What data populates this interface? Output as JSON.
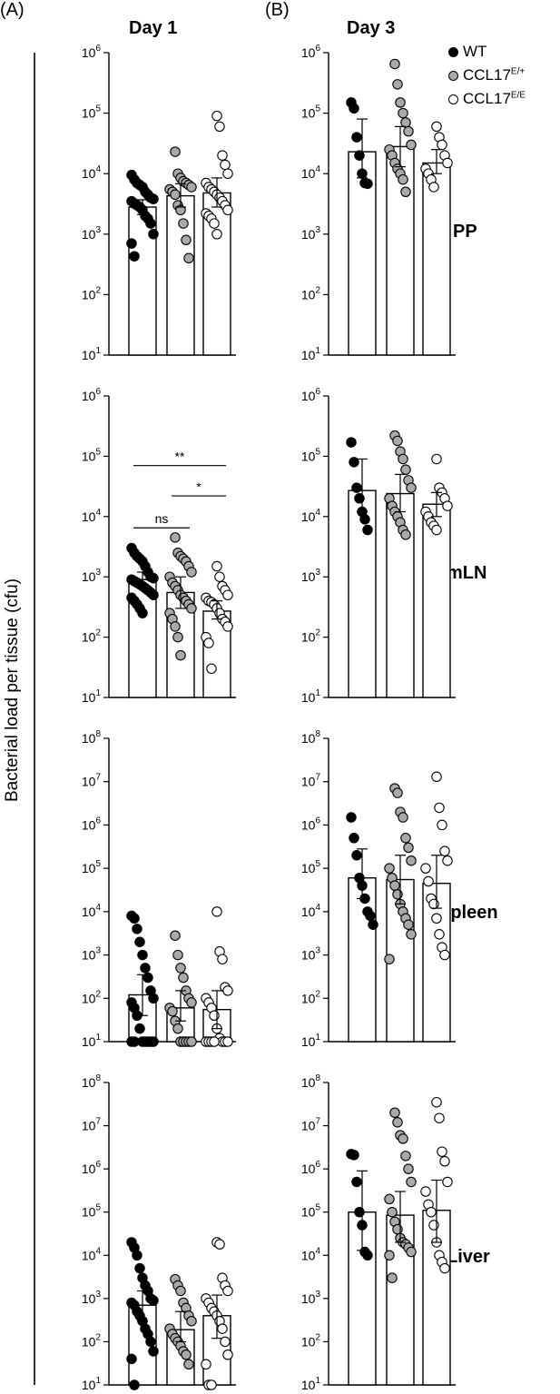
{
  "labels": {
    "panel_a": "(A)",
    "panel_b": "(B)",
    "day1": "Day 1",
    "day3": "Day 3",
    "y_axis_title": "Bacterial load per tissue (cfu)",
    "rows": [
      "PP",
      "mLN",
      "Spleen",
      "Liver"
    ]
  },
  "legend": [
    {
      "base": "WT",
      "sup": "",
      "color": "#000000"
    },
    {
      "base": "CCL17",
      "sup": "E/+",
      "color": "#a9a9a9"
    },
    {
      "base": "CCL17",
      "sup": "E/E",
      "color": "#ffffff"
    }
  ],
  "chart_data": [
    {
      "type": "bar",
      "panel": "A",
      "row": "PP",
      "column": "Day 1",
      "yscale": "log",
      "ylim": [
        10,
        1000000
      ],
      "yticks": [
        "10^1",
        "10^2",
        "10^3",
        "10^4",
        "10^5",
        "10^6"
      ],
      "series": [
        {
          "name": "WT",
          "mean": 2800,
          "err": [
            2100,
            3700
          ],
          "points": [
            9500,
            8000,
            7000,
            6500,
            6000,
            5000,
            4500,
            4000,
            3800,
            3500,
            3200,
            3000,
            2800,
            2500,
            2000,
            1800,
            1500,
            1000,
            700,
            430
          ]
        },
        {
          "name": "CCL17E/+",
          "mean": 4300,
          "err": [
            2800,
            6800
          ],
          "points": [
            23000,
            10000,
            8500,
            7500,
            7000,
            6500,
            6000,
            5500,
            5000,
            4500,
            3000,
            2500,
            1500,
            800,
            400
          ]
        },
        {
          "name": "CCL17E/E",
          "mean": 4800,
          "err": [
            2800,
            8500
          ],
          "points": [
            90000,
            60000,
            20000,
            14000,
            10000,
            7000,
            6000,
            5500,
            5000,
            4500,
            4000,
            3500,
            3000,
            2500,
            2200,
            2000,
            1800,
            1500,
            1000
          ]
        }
      ]
    },
    {
      "type": "bar",
      "panel": "B",
      "row": "PP",
      "column": "Day 3",
      "yscale": "log",
      "ylim": [
        10,
        1000000
      ],
      "yticks": [
        "10^1",
        "10^2",
        "10^3",
        "10^4",
        "10^5",
        "10^6"
      ],
      "series": [
        {
          "name": "WT",
          "mean": 23000,
          "err": [
            8500,
            80000
          ],
          "points": [
            150000,
            120000,
            40000,
            20000,
            10000,
            7000,
            6800
          ]
        },
        {
          "name": "CCL17E/+",
          "mean": 28000,
          "err": [
            13000,
            60000
          ],
          "points": [
            650000,
            300000,
            150000,
            100000,
            70000,
            50000,
            30000,
            25000,
            20000,
            15000,
            12000,
            10000,
            8000,
            5000
          ]
        },
        {
          "name": "CCL17E/E",
          "mean": 15000,
          "err": [
            10000,
            25000
          ],
          "points": [
            60000,
            40000,
            30000,
            20000,
            15000,
            12000,
            10000,
            8000,
            6000
          ]
        }
      ]
    },
    {
      "type": "bar",
      "panel": "A",
      "row": "mLN",
      "column": "Day 1",
      "yscale": "log",
      "ylim": [
        10,
        1000000
      ],
      "yticks": [
        "10^1",
        "10^2",
        "10^3",
        "10^4",
        "10^5",
        "10^6"
      ],
      "annotations": [
        {
          "text": "**",
          "from": 0,
          "to": 2,
          "y": 70000
        },
        {
          "text": "ns",
          "from": 0,
          "to": 1,
          "y": 6500
        },
        {
          "text": "*",
          "from": 1,
          "to": 2,
          "y": 22000
        }
      ],
      "series": [
        {
          "name": "WT",
          "mean": 900,
          "err": [
            700,
            1200
          ],
          "points": [
            3000,
            2500,
            2200,
            2000,
            1800,
            1500,
            1200,
            1000,
            950,
            900,
            850,
            800,
            750,
            700,
            650,
            600,
            550,
            500,
            450,
            400,
            350,
            300,
            250
          ]
        },
        {
          "name": "CCL17E/+",
          "mean": 550,
          "err": [
            300,
            1000
          ],
          "points": [
            4500,
            2500,
            2200,
            2000,
            1800,
            1500,
            1200,
            1000,
            800,
            700,
            600,
            500,
            450,
            400,
            350,
            300,
            250,
            200,
            150,
            100,
            50
          ]
        },
        {
          "name": "CCL17E/E",
          "mean": 270,
          "err": [
            200,
            400
          ],
          "points": [
            1500,
            1000,
            700,
            600,
            500,
            450,
            400,
            380,
            350,
            300,
            250,
            200,
            180,
            150,
            100,
            80,
            30
          ]
        }
      ]
    },
    {
      "type": "bar",
      "panel": "B",
      "row": "mLN",
      "column": "Day 3",
      "yscale": "log",
      "ylim": [
        10,
        1000000
      ],
      "yticks": [
        "10^1",
        "10^2",
        "10^3",
        "10^4",
        "10^5",
        "10^6"
      ],
      "series": [
        {
          "name": "WT",
          "mean": 27000,
          "err": [
            12000,
            90000
          ],
          "points": [
            170000,
            80000,
            30000,
            20000,
            12000,
            9000,
            6000
          ]
        },
        {
          "name": "CCL17E/+",
          "mean": 24000,
          "err": [
            12000,
            50000
          ],
          "points": [
            220000,
            180000,
            120000,
            90000,
            60000,
            40000,
            30000,
            20000,
            15000,
            12000,
            10000,
            8000,
            6000,
            5000
          ]
        },
        {
          "name": "CCL17E/E",
          "mean": 16000,
          "err": [
            10000,
            25000
          ],
          "points": [
            90000,
            30000,
            25000,
            20000,
            15000,
            12000,
            10000,
            8000,
            7000,
            6000
          ]
        }
      ]
    },
    {
      "type": "bar",
      "panel": "A",
      "row": "Spleen",
      "column": "Day 1",
      "yscale": "log",
      "ylim": [
        10,
        100000000
      ],
      "yticks": [
        "10^1",
        "10^2",
        "10^3",
        "10^4",
        "10^5",
        "10^6",
        "10^7",
        "10^8"
      ],
      "series": [
        {
          "name": "WT",
          "mean": 120,
          "err": [
            40,
            350
          ],
          "points": [
            8000,
            7000,
            4000,
            2000,
            1000,
            500,
            300,
            150,
            100,
            80,
            60,
            40,
            20,
            10,
            10,
            10,
            10,
            10,
            10,
            10
          ]
        },
        {
          "name": "CCL17E/+",
          "mean": 60,
          "err": [
            30,
            150
          ],
          "points": [
            2800,
            1000,
            500,
            300,
            150,
            100,
            80,
            60,
            50,
            30,
            20,
            10,
            10,
            10,
            10,
            10
          ]
        },
        {
          "name": "CCL17E/E",
          "mean": 55,
          "err": [
            20,
            150
          ],
          "points": [
            10000,
            1200,
            800,
            180,
            150,
            100,
            80,
            60,
            40,
            20,
            12,
            10,
            10,
            10,
            10,
            10,
            10,
            10
          ]
        }
      ]
    },
    {
      "type": "bar",
      "panel": "B",
      "row": "Spleen",
      "column": "Day 3",
      "yscale": "log",
      "ylim": [
        10,
        100000000
      ],
      "yticks": [
        "10^1",
        "10^2",
        "10^3",
        "10^4",
        "10^5",
        "10^6",
        "10^7",
        "10^8"
      ],
      "series": [
        {
          "name": "WT",
          "mean": 60000,
          "err": [
            20000,
            280000
          ],
          "points": [
            1500000,
            500000,
            200000,
            60000,
            40000,
            20000,
            10000,
            8000,
            5000
          ]
        },
        {
          "name": "CCL17E/+",
          "mean": 55000,
          "err": [
            15000,
            200000
          ],
          "points": [
            7000000,
            5500000,
            2000000,
            1500000,
            500000,
            300000,
            150000,
            100000,
            60000,
            40000,
            25000,
            15000,
            10000,
            7000,
            5000,
            3000,
            800
          ]
        },
        {
          "name": "CCL17E/E",
          "mean": 45000,
          "err": [
            12000,
            200000
          ],
          "points": [
            13000000,
            2500000,
            1000000,
            250000,
            150000,
            100000,
            50000,
            20000,
            15000,
            7000,
            3000,
            1500,
            1000
          ]
        }
      ]
    },
    {
      "type": "bar",
      "panel": "A",
      "row": "Liver",
      "column": "Day 1",
      "yscale": "log",
      "ylim": [
        10,
        100000000
      ],
      "yticks": [
        "10^1",
        "10^2",
        "10^3",
        "10^4",
        "10^5",
        "10^6",
        "10^7",
        "10^8"
      ],
      "series": [
        {
          "name": "WT",
          "mean": 700,
          "err": [
            300,
            1500
          ],
          "points": [
            20000,
            15000,
            10000,
            5000,
            3000,
            2000,
            1500,
            1000,
            900,
            800,
            700,
            500,
            400,
            300,
            200,
            150,
            100,
            60,
            40,
            10
          ]
        },
        {
          "name": "CCL17E/+",
          "mean": 190,
          "err": [
            100,
            500
          ],
          "points": [
            2800,
            2000,
            1500,
            800,
            600,
            400,
            300,
            200,
            150,
            120,
            100,
            80,
            60,
            50,
            30
          ]
        },
        {
          "name": "CCL17E/E",
          "mean": 400,
          "err": [
            120,
            1200
          ],
          "points": [
            20000,
            18000,
            3000,
            2000,
            1500,
            1000,
            800,
            600,
            500,
            400,
            300,
            200,
            100,
            50,
            30,
            10,
            10
          ]
        }
      ]
    },
    {
      "type": "bar",
      "panel": "B",
      "row": "Liver",
      "column": "Day 3",
      "yscale": "log",
      "ylim": [
        10,
        100000000
      ],
      "yticks": [
        "10^1",
        "10^2",
        "10^3",
        "10^4",
        "10^5",
        "10^6",
        "10^7",
        "10^8"
      ],
      "series": [
        {
          "name": "WT",
          "mean": 100000,
          "err": [
            13000,
            900000
          ],
          "points": [
            2200000,
            2100000,
            500000,
            100000,
            50000,
            12000,
            10000
          ]
        },
        {
          "name": "CCL17E/+",
          "mean": 85000,
          "err": [
            20000,
            300000
          ],
          "points": [
            20000000,
            12000000,
            6000000,
            5000000,
            2000000,
            1000000,
            500000,
            200000,
            100000,
            60000,
            40000,
            25000,
            20000,
            18000,
            15000,
            12000,
            10000,
            3000
          ]
        },
        {
          "name": "CCL17E/E",
          "mean": 110000,
          "err": [
            20000,
            550000
          ],
          "points": [
            35000000,
            15000000,
            2500000,
            1500000,
            500000,
            300000,
            150000,
            100000,
            50000,
            20000,
            10000,
            7000,
            5000
          ]
        }
      ]
    }
  ]
}
